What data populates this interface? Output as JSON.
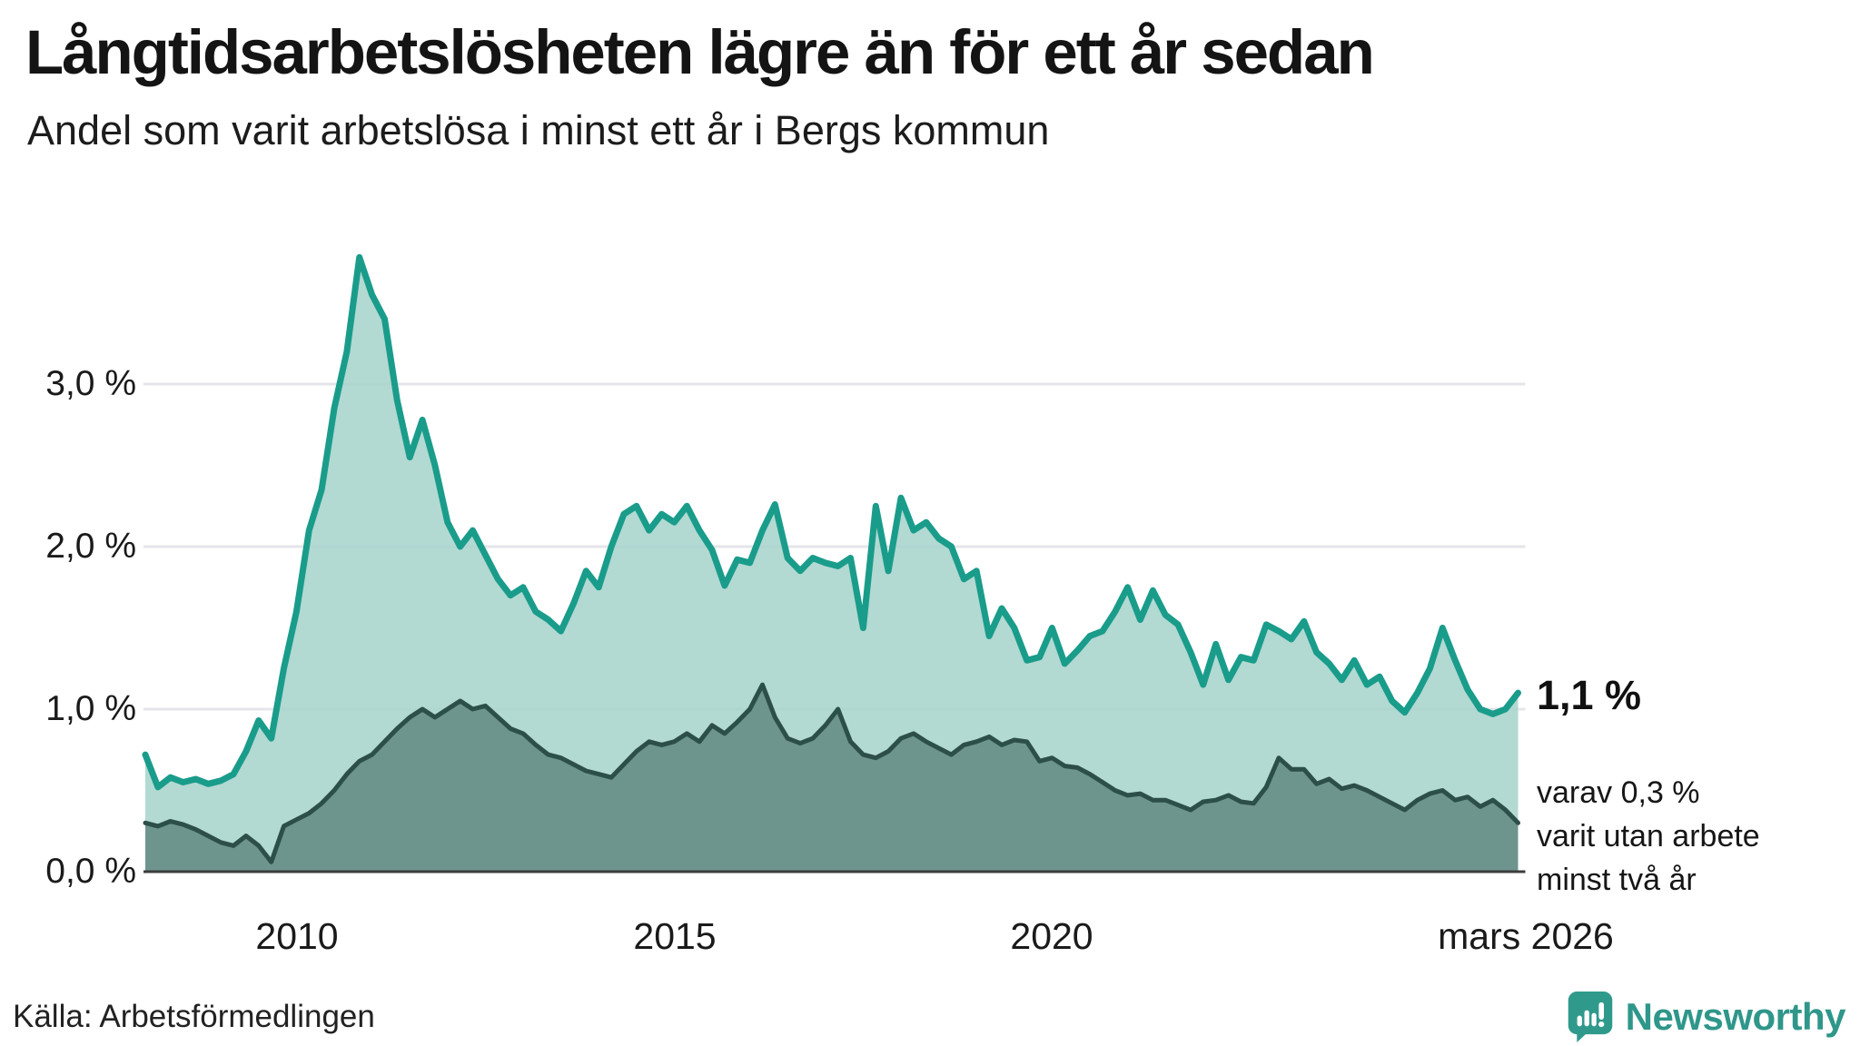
{
  "header": {
    "title": "Långtidsarbetslösheten lägre än för ett år sedan",
    "subtitle": "Andel som varit arbetslösa i minst ett år i Bergs kommun"
  },
  "annotations": {
    "latest_value": "1,1 %",
    "note_lines": [
      "varav 0,3 %",
      "varit utan arbete",
      "minst två år"
    ]
  },
  "footer": {
    "source": "Källa: Arbetsförmedlingen",
    "brand_name": "Newsworthy"
  },
  "colors": {
    "series_1_line": "#1a9c8b",
    "series_1_fill": "#a7d4cc",
    "series_2_line": "#2d4f49",
    "series_2_fill": "#6d958e",
    "gridline": "#e4e6e9",
    "baseline": "#3d3d3d",
    "brand_teal": "#2f968a"
  },
  "chart_data": {
    "type": "area",
    "title": "Långtidsarbetslösheten lägre än för ett år sedan",
    "subtitle": "Andel som varit arbetslösa i minst ett år i Bergs kommun",
    "unit": "percent",
    "x_start": 2008.0,
    "x_step": 0.16667,
    "x_end_label": "mars 2026",
    "ylim": [
      0,
      4
    ],
    "grid": "horizontal",
    "y_tick_labels": [
      "0,0 %",
      "1,0 %",
      "2,0 %",
      "3,0 %"
    ],
    "y_tick_values": [
      0.0,
      1.0,
      2.0,
      3.0
    ],
    "x_tick_labels": [
      "2010",
      "2015",
      "2020",
      "mars 2026"
    ],
    "x_tick_values": [
      2010,
      2015,
      2020,
      2026.17
    ],
    "series": [
      {
        "name": "Andel arbetslösa minst ett år",
        "latest_value": 1.1,
        "line_color": "#1a9c8b",
        "fill_color": "#a7d4cc",
        "values": [
          0.72,
          0.52,
          0.58,
          0.55,
          0.57,
          0.54,
          0.56,
          0.6,
          0.74,
          0.93,
          0.82,
          1.25,
          1.6,
          2.1,
          2.35,
          2.85,
          3.2,
          3.78,
          3.55,
          3.4,
          2.9,
          2.55,
          2.78,
          2.5,
          2.15,
          2.0,
          2.1,
          1.95,
          1.8,
          1.7,
          1.75,
          1.6,
          1.55,
          1.48,
          1.65,
          1.85,
          1.75,
          2.0,
          2.2,
          2.25,
          2.1,
          2.2,
          2.15,
          2.25,
          2.1,
          1.98,
          1.76,
          1.92,
          1.9,
          2.1,
          2.26,
          1.93,
          1.85,
          1.93,
          1.9,
          1.88,
          1.93,
          1.5,
          2.25,
          1.85,
          2.3,
          2.1,
          2.15,
          2.05,
          2.0,
          1.8,
          1.85,
          1.45,
          1.62,
          1.5,
          1.3,
          1.32,
          1.5,
          1.28,
          1.36,
          1.45,
          1.48,
          1.6,
          1.75,
          1.55,
          1.73,
          1.58,
          1.52,
          1.35,
          1.15,
          1.4,
          1.18,
          1.32,
          1.3,
          1.52,
          1.48,
          1.43,
          1.54,
          1.35,
          1.28,
          1.18,
          1.3,
          1.15,
          1.2,
          1.05,
          0.98,
          1.1,
          1.25,
          1.5,
          1.3,
          1.12,
          1.0,
          0.97,
          1.0,
          1.1
        ]
      },
      {
        "name": "varav arbetslösa minst två år",
        "latest_value": 0.3,
        "line_color": "#2d4f49",
        "fill_color": "#6d958e",
        "values": [
          0.3,
          0.28,
          0.31,
          0.29,
          0.26,
          0.22,
          0.18,
          0.16,
          0.22,
          0.16,
          0.06,
          0.28,
          0.32,
          0.36,
          0.42,
          0.5,
          0.6,
          0.68,
          0.72,
          0.8,
          0.88,
          0.95,
          1.0,
          0.95,
          1.0,
          1.05,
          1.0,
          1.02,
          0.95,
          0.88,
          0.85,
          0.78,
          0.72,
          0.7,
          0.66,
          0.62,
          0.6,
          0.58,
          0.66,
          0.74,
          0.8,
          0.78,
          0.8,
          0.85,
          0.8,
          0.9,
          0.85,
          0.92,
          1.0,
          1.15,
          0.95,
          0.82,
          0.79,
          0.82,
          0.9,
          1.0,
          0.8,
          0.72,
          0.7,
          0.74,
          0.82,
          0.85,
          0.8,
          0.76,
          0.72,
          0.78,
          0.8,
          0.83,
          0.78,
          0.81,
          0.8,
          0.68,
          0.7,
          0.65,
          0.64,
          0.6,
          0.55,
          0.5,
          0.47,
          0.48,
          0.44,
          0.44,
          0.41,
          0.38,
          0.43,
          0.44,
          0.47,
          0.43,
          0.42,
          0.52,
          0.7,
          0.63,
          0.63,
          0.54,
          0.57,
          0.51,
          0.53,
          0.5,
          0.46,
          0.42,
          0.38,
          0.44,
          0.48,
          0.5,
          0.44,
          0.46,
          0.4,
          0.44,
          0.38,
          0.3
        ]
      }
    ]
  }
}
